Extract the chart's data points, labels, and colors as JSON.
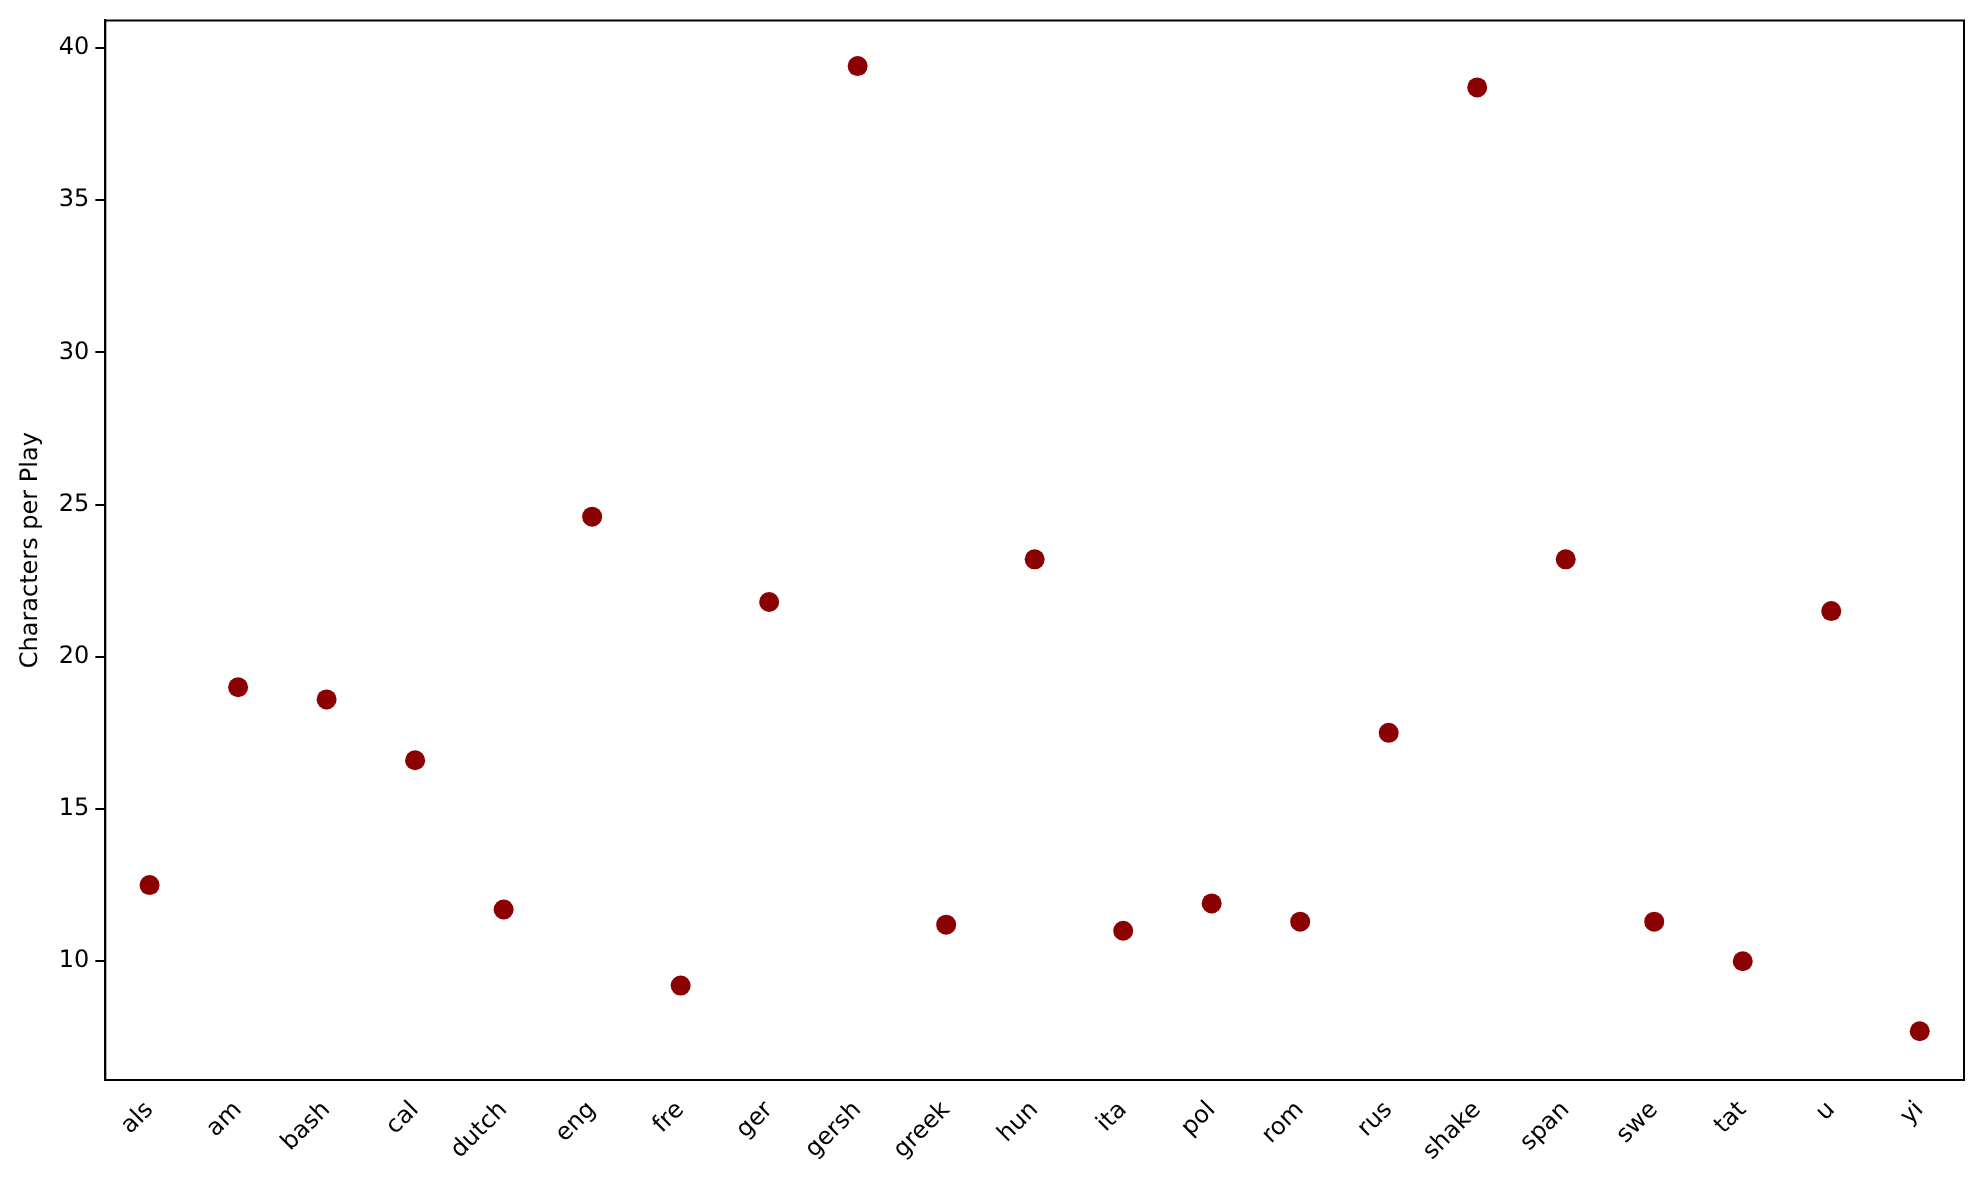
{
  "chart_data": {
    "type": "scatter",
    "ylabel": "Characters per Play",
    "categories": [
      "als",
      "am",
      "bash",
      "cal",
      "dutch",
      "eng",
      "fre",
      "ger",
      "gersh",
      "greek",
      "hun",
      "ita",
      "pol",
      "rom",
      "rus",
      "shake",
      "span",
      "swe",
      "tat",
      "u",
      "yi"
    ],
    "values": [
      12.5,
      19.0,
      18.6,
      16.6,
      11.7,
      24.6,
      9.2,
      21.8,
      39.4,
      11.2,
      23.2,
      11.0,
      11.9,
      11.3,
      17.5,
      38.7,
      23.2,
      11.3,
      10.0,
      21.5,
      7.7
    ],
    "color": "#8b0000",
    "marker": "circle",
    "ylim": [
      6.1,
      40.9
    ],
    "yticks": [
      10,
      15,
      20,
      25,
      30,
      35,
      40
    ],
    "grid": false,
    "legend": false
  }
}
